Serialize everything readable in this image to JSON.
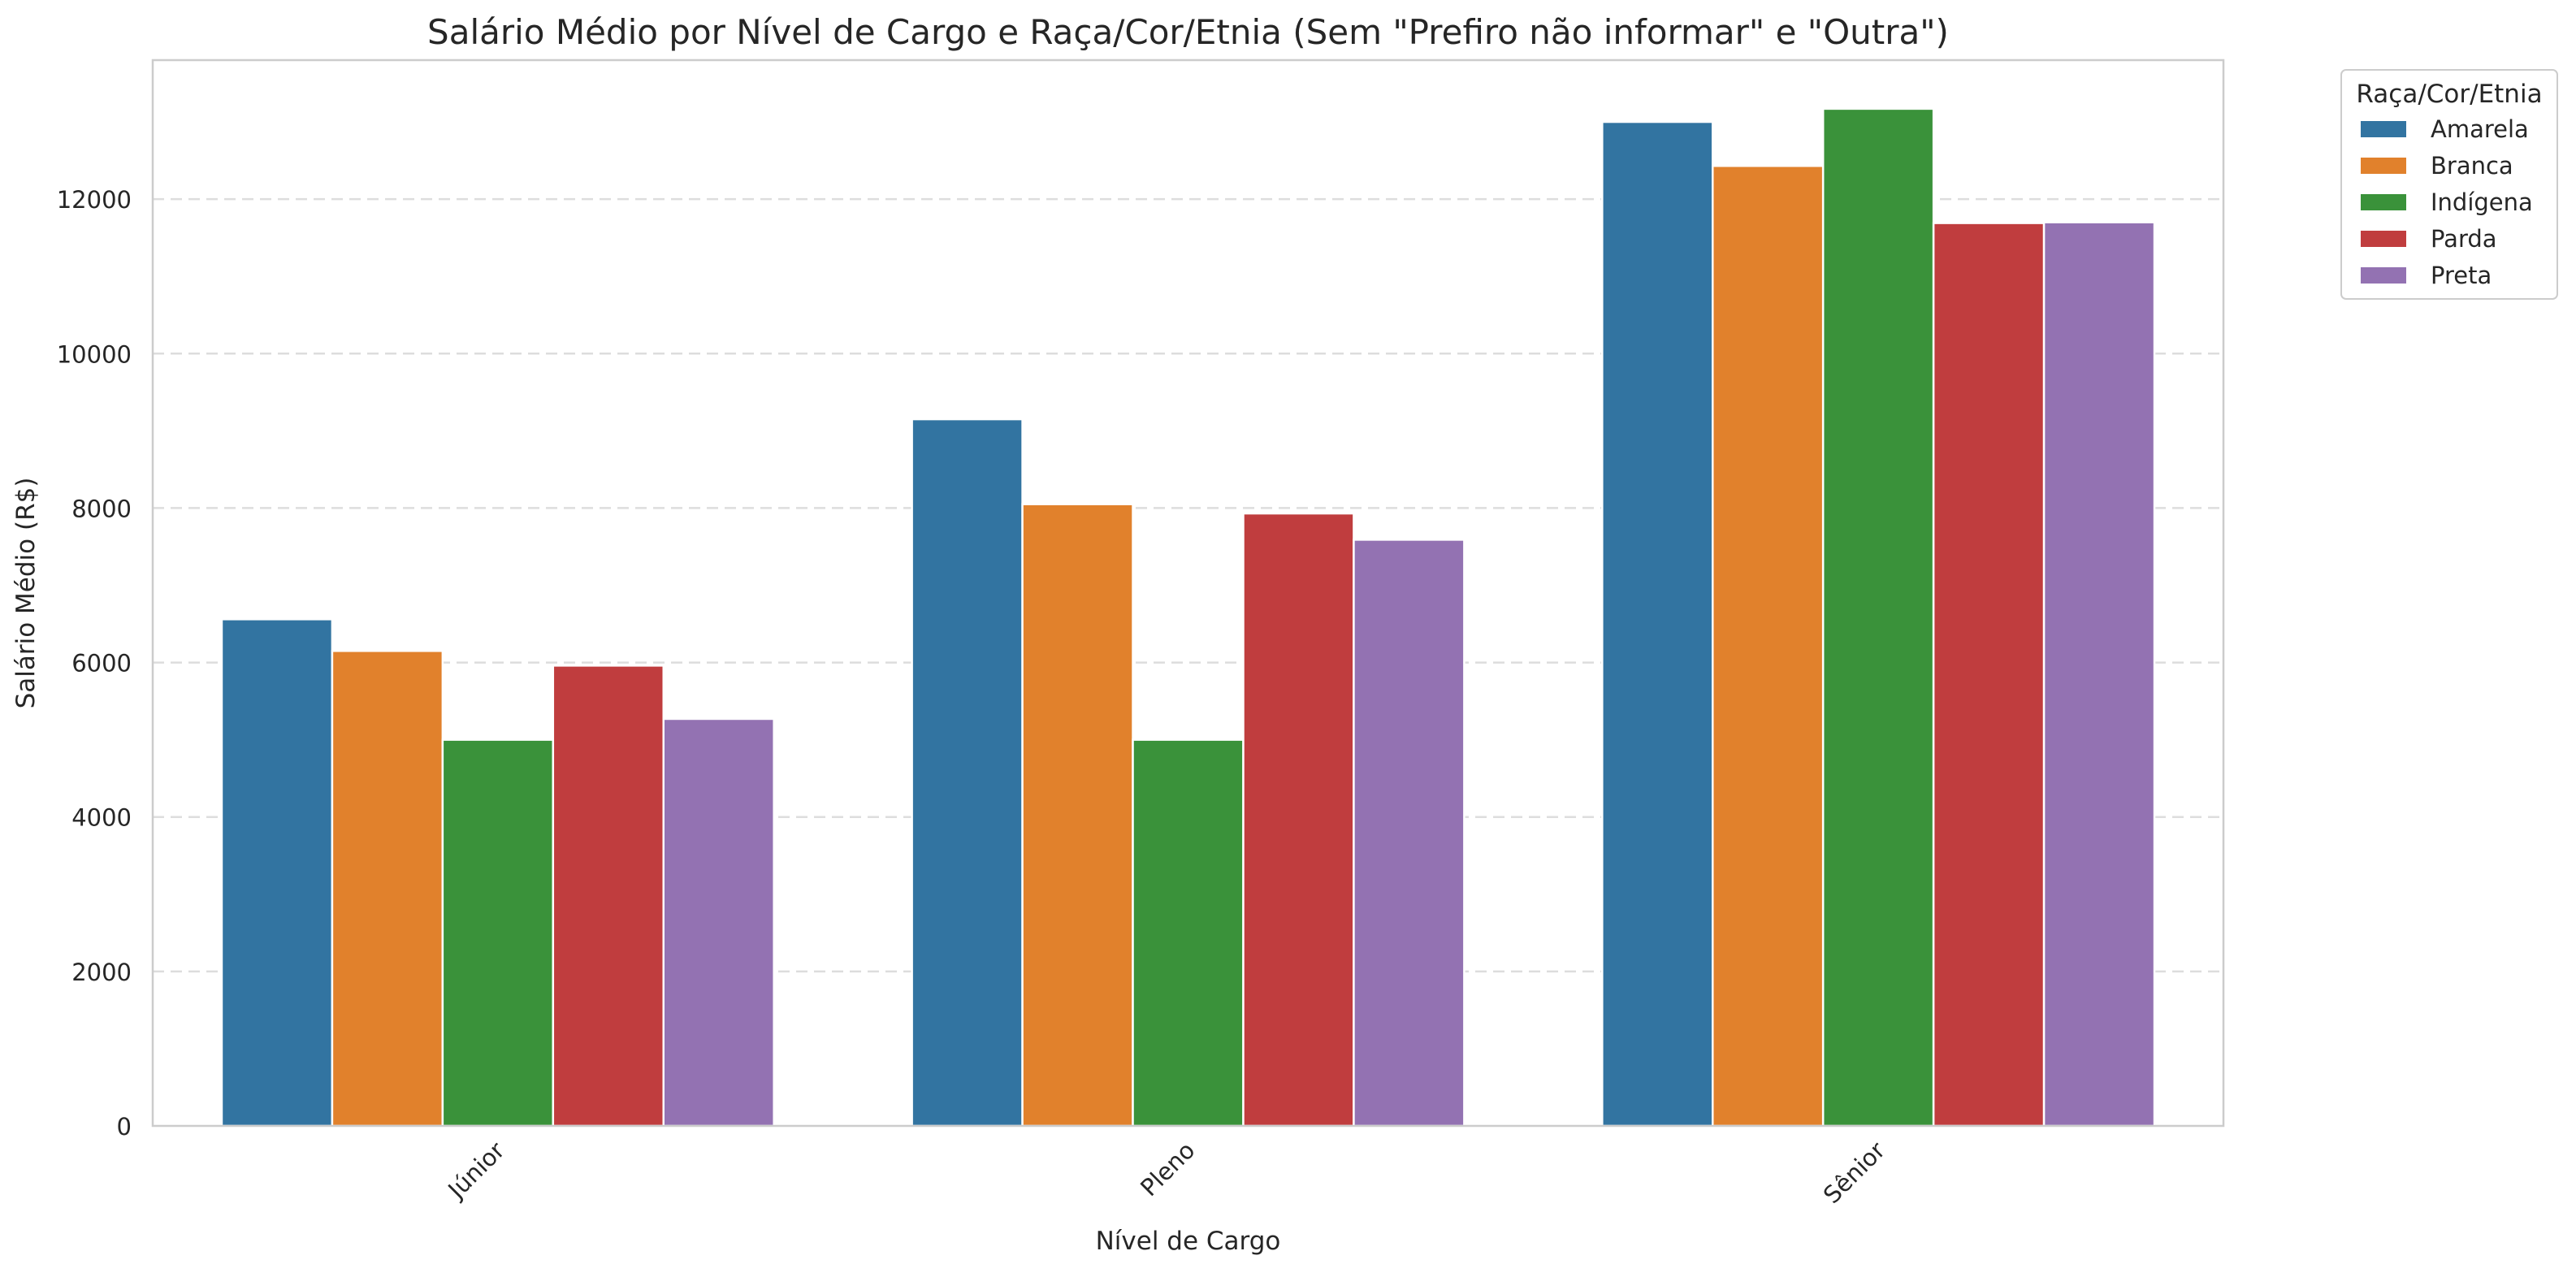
{
  "chart_data": {
    "type": "bar",
    "title": "Salário Médio por Nível de Cargo e Raça/Cor/Etnia (Sem \"Prefiro não informar\" e \"Outra\")",
    "xlabel": "Nível de Cargo",
    "ylabel": "Salário Médio (R$)",
    "categories": [
      "Júnior",
      "Pleno",
      "Sênior"
    ],
    "ylim": [
      0,
      13800
    ],
    "yticks": [
      0,
      2000,
      4000,
      6000,
      8000,
      10000,
      12000
    ],
    "grid": "horizontal dashed",
    "legend": {
      "title": "Raça/Cor/Etnia",
      "placement": "outside top-right"
    },
    "series": [
      {
        "name": "Amarela",
        "color": "#3274a1",
        "values": [
          6560,
          9150,
          13000
        ]
      },
      {
        "name": "Branca",
        "color": "#e1812c",
        "values": [
          6150,
          8050,
          12430
        ]
      },
      {
        "name": "Indígena",
        "color": "#3a923a",
        "values": [
          5000,
          5000,
          13170
        ]
      },
      {
        "name": "Parda",
        "color": "#c03d3e",
        "values": [
          5960,
          7930,
          11690
        ]
      },
      {
        "name": "Preta",
        "color": "#9372b2",
        "values": [
          5270,
          7590,
          11700
        ]
      }
    ]
  }
}
